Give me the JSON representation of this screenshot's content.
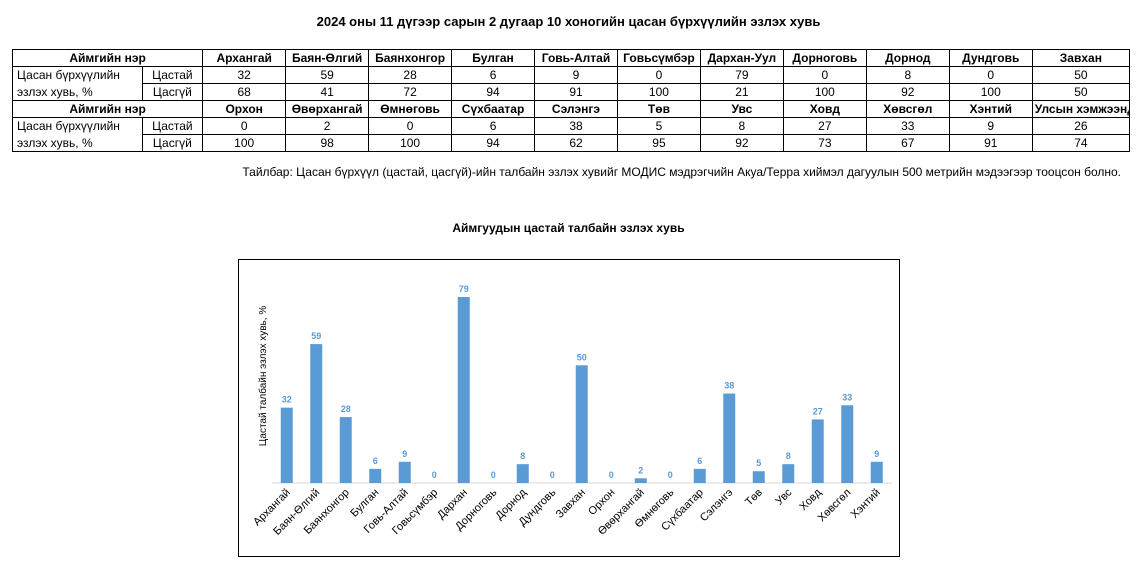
{
  "title": "2024 оны 11 дүгээр сарын 2 дугаар 10 хоногийн цасан бүрхүүлийн эзлэх хувь",
  "table": {
    "header_label": "Аймгийн нэр",
    "row_label_line1": "Цасан бүрхүүлийн",
    "row_label_line2": "эзлэх хувь, %",
    "snow_label": "Цастай",
    "nosnow_label": "Цасгүй",
    "block1": {
      "names": [
        "Архангай",
        "Баян-Өлгий",
        "Баянхонгор",
        "Булган",
        "Говь-Алтай",
        "Говьсүмбэр",
        "Дархан-Уул",
        "Дорноговь",
        "Дорнод",
        "Дундговь",
        "Завхан"
      ],
      "snow": [
        "32",
        "59",
        "28",
        "6",
        "9",
        "0",
        "79",
        "0",
        "8",
        "0",
        "50"
      ],
      "nosnow": [
        "68",
        "41",
        "72",
        "94",
        "91",
        "100",
        "21",
        "100",
        "92",
        "100",
        "50"
      ]
    },
    "block2": {
      "names": [
        "Орхон",
        "Өвөрхангай",
        "Өмнөговь",
        "Сүхбаатар",
        "Сэлэнгэ",
        "Төв",
        "Увс",
        "Ховд",
        "Хөвсгөл",
        "Хэнтий",
        "Улсын хэмжээнд"
      ],
      "snow": [
        "0",
        "2",
        "0",
        "6",
        "38",
        "5",
        "8",
        "27",
        "33",
        "9",
        "26"
      ],
      "nosnow": [
        "100",
        "98",
        "100",
        "94",
        "62",
        "95",
        "92",
        "73",
        "67",
        "91",
        "74"
      ]
    }
  },
  "note": "Тайлбар: Цасан бүрхүүл (цастай, цасгүй)-ийн талбайн эзлэх хувийг МОДИС мэдрэгчийн Акуа/Терра хиймэл дагуулын 500 метрийн мэдээгээр тооцсон болно.",
  "chart_data": {
    "type": "bar",
    "title": "Аймгуудын цастай талбайн эзлэх хувь",
    "xlabel": "",
    "ylabel": "Цастай талбайн эзлэх хувь, %",
    "categories": [
      "Архангай",
      "Баян-Өлгий",
      "Баянхонгор",
      "Булган",
      "Говь-Алтай",
      "Говьсүмбэр",
      "Дархан",
      "Дорноговь",
      "Дорнод",
      "Дундговь",
      "Завхан",
      "Орхон",
      "Өвөрхангай",
      "Өмнөговь",
      "Сүхбаатар",
      "Сэлэнгэ",
      "Төв",
      "Увс",
      "Ховд",
      "Хөвсгөл",
      "Хэнтий"
    ],
    "values": [
      32,
      59,
      28,
      6,
      9,
      0,
      79,
      0,
      8,
      0,
      50,
      0,
      2,
      0,
      6,
      38,
      5,
      8,
      27,
      33,
      9
    ],
    "ylim": [
      0,
      79
    ],
    "grid": false,
    "data_labels": true,
    "bar_color": "#5B9BD5",
    "label_color": "#5B9BD5"
  }
}
